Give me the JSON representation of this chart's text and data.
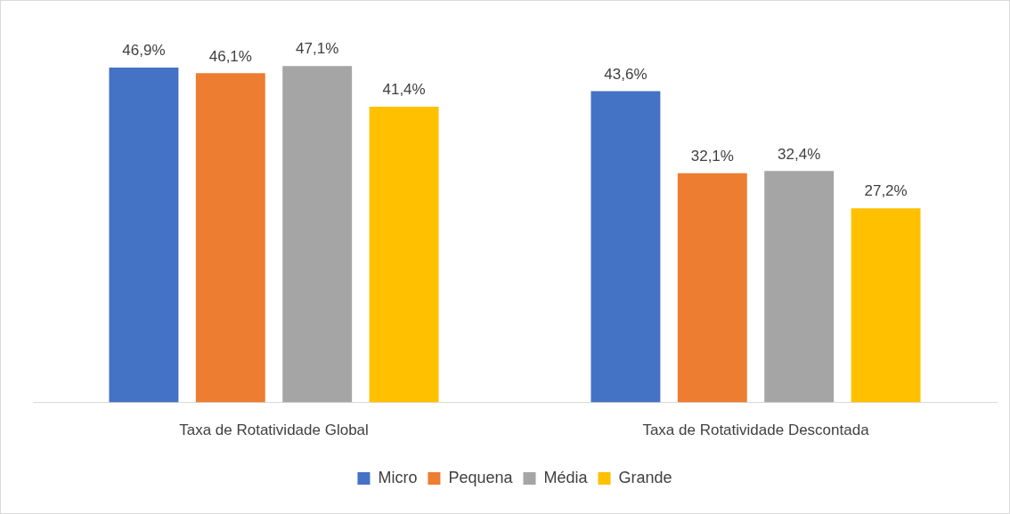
{
  "chart_data": {
    "type": "bar",
    "categories": [
      "Taxa de Rotatividade Global",
      "Taxa de Rotatividade Descontada"
    ],
    "series": [
      {
        "name": "Micro",
        "color": "#4472c4",
        "values": [
          46.9,
          43.6
        ],
        "value_labels": [
          "46,9%",
          "43,6%"
        ]
      },
      {
        "name": "Pequena",
        "color": "#ed7d31",
        "values": [
          46.1,
          32.1
        ],
        "value_labels": [
          "46,1%",
          "32,1%"
        ]
      },
      {
        "name": "Média",
        "color": "#a5a5a5",
        "values": [
          47.1,
          32.4
        ],
        "value_labels": [
          "47,1%",
          "32,4%"
        ]
      },
      {
        "name": "Grande",
        "color": "#ffc000",
        "values": [
          41.4,
          27.2
        ],
        "value_labels": [
          "41,4%",
          "27,2%"
        ]
      }
    ],
    "legend": "bottom",
    "grid": false,
    "tick_labels": "x"
  }
}
